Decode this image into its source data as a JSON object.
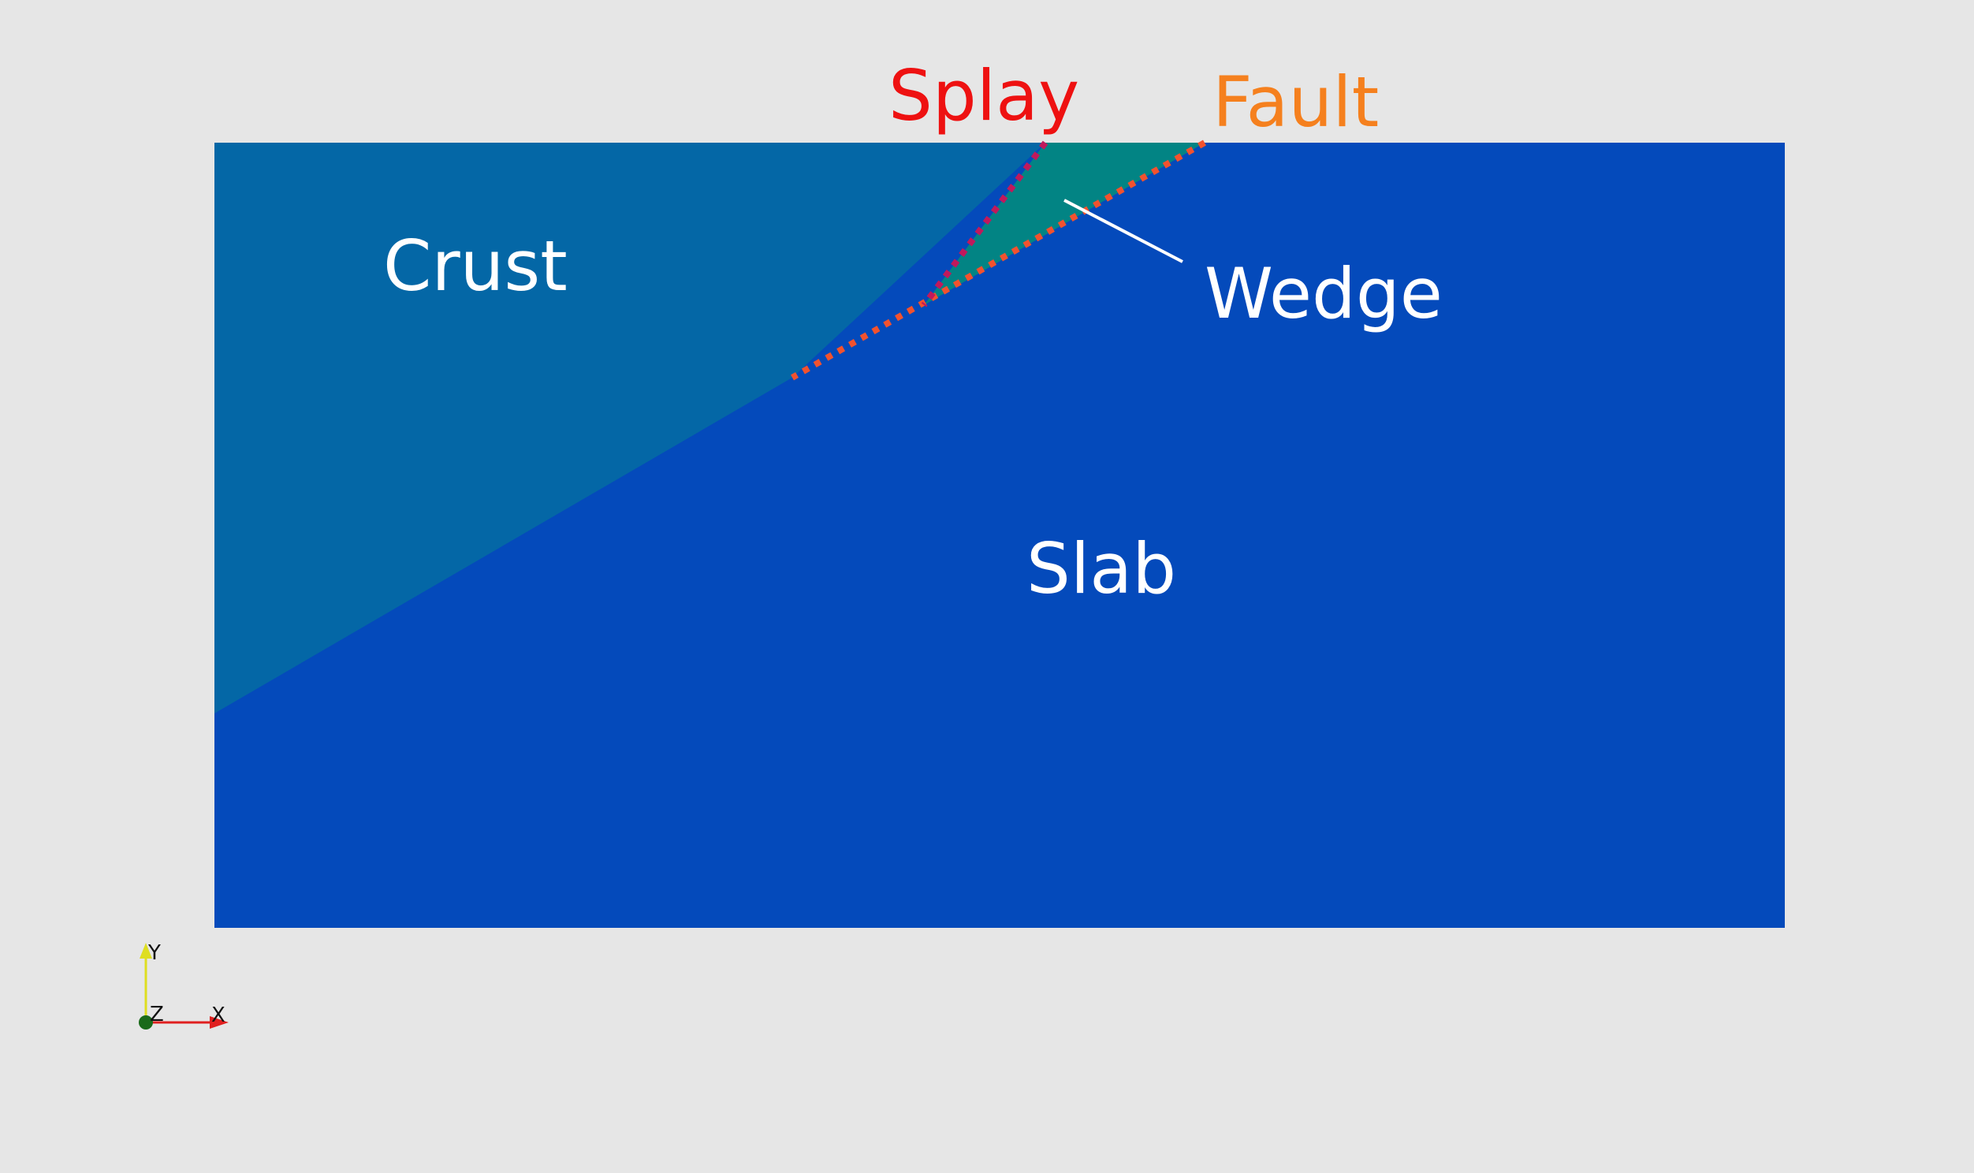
{
  "labels": {
    "crust": "Crust",
    "wedge": "Wedge",
    "slab": "Slab",
    "splay": "Splay",
    "fault": "Fault"
  },
  "axes_triad": {
    "x_label": "X",
    "y_label": "Y",
    "z_label": "Z"
  },
  "colors": {
    "background": "#e6e6e6",
    "crust": "#0467a6",
    "wedge": "#028484",
    "slab": "#044abb",
    "splay_line": "#c0195c",
    "fault_line": "#f2522e",
    "splay_label": "#ee1111",
    "fault_label": "#f5801e",
    "annotation": "#ffffff",
    "x_axis": "#e02020",
    "y_axis": "#dede20",
    "z_axis": "#1a6a1a"
  },
  "icons": {
    "orientation": "xyz-axes-icon"
  }
}
